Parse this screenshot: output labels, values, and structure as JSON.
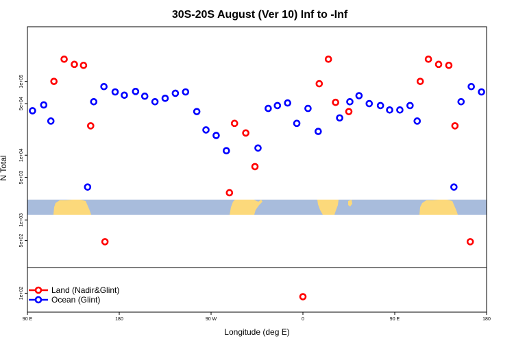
{
  "chart_data": {
    "type": "scatter",
    "title": "30S-20S August (Ver 10)   Inf to -Inf",
    "xlabel": "Longitude (deg E)",
    "ylabel": "N Total",
    "x_ticks": [
      {
        "value": 0,
        "label": "90 E"
      },
      {
        "value": 90,
        "label": "180"
      },
      {
        "value": 180,
        "label": "90 W"
      },
      {
        "value": 270,
        "label": "0"
      },
      {
        "value": 360,
        "label": "90 E"
      },
      {
        "value": 450,
        "label": "180"
      }
    ],
    "xlim": [
      0,
      450
    ],
    "panels": [
      {
        "name": "top",
        "scale": "log",
        "ylim": [
          2500,
          550000
        ],
        "ticks": [
          {
            "value": 5000,
            "label": "5e+03"
          },
          {
            "value": 10000,
            "label": "1e+04"
          },
          {
            "value": 50000,
            "label": "5e+04"
          },
          {
            "value": 100000,
            "label": "1e+05"
          }
        ]
      },
      {
        "name": "middle",
        "scale": "log",
        "ylim": [
          200,
          1200
        ],
        "ticks": [
          {
            "value": 500,
            "label": "5e+02"
          },
          {
            "value": 1000,
            "label": "1e+03"
          }
        ]
      },
      {
        "name": "bottom",
        "scale": "log",
        "ylim": [
          60,
          200
        ],
        "ticks": [
          {
            "value": 100,
            "label": "1e+02"
          }
        ]
      }
    ],
    "legend": {
      "position": "bottom-left"
    },
    "series": [
      {
        "name": "Land (Nadir&Glint)",
        "color": "#ff0000",
        "points": [
          {
            "x": 26,
            "y": 100000
          },
          {
            "x": 36,
            "y": 200000
          },
          {
            "x": 46,
            "y": 170000
          },
          {
            "x": 55,
            "y": 165000
          },
          {
            "x": 62,
            "y": 25000
          },
          {
            "x": 76,
            "y": 480
          },
          {
            "x": 198,
            "y": 3100
          },
          {
            "x": 203,
            "y": 27000
          },
          {
            "x": 214,
            "y": 20000
          },
          {
            "x": 223,
            "y": 7000
          },
          {
            "x": 270,
            "y": 91
          },
          {
            "x": 286,
            "y": 93000
          },
          {
            "x": 295,
            "y": 200000
          },
          {
            "x": 302,
            "y": 52000
          },
          {
            "x": 315,
            "y": 39000
          },
          {
            "x": 385,
            "y": 100000
          },
          {
            "x": 393,
            "y": 200000
          },
          {
            "x": 403,
            "y": 170000
          },
          {
            "x": 413,
            "y": 165000
          },
          {
            "x": 419,
            "y": 25000
          },
          {
            "x": 434,
            "y": 480
          }
        ]
      },
      {
        "name": "Ocean (Glint)",
        "color": "#0000ff",
        "points": [
          {
            "x": 5,
            "y": 40000
          },
          {
            "x": 16,
            "y": 48000
          },
          {
            "x": 23,
            "y": 29000
          },
          {
            "x": 59,
            "y": 3700
          },
          {
            "x": 65,
            "y": 53000
          },
          {
            "x": 75,
            "y": 85000
          },
          {
            "x": 86,
            "y": 72000
          },
          {
            "x": 95,
            "y": 65000
          },
          {
            "x": 106,
            "y": 73000
          },
          {
            "x": 115,
            "y": 63000
          },
          {
            "x": 125,
            "y": 53000
          },
          {
            "x": 135,
            "y": 59000
          },
          {
            "x": 145,
            "y": 69000
          },
          {
            "x": 155,
            "y": 72000
          },
          {
            "x": 166,
            "y": 39000
          },
          {
            "x": 175,
            "y": 22000
          },
          {
            "x": 185,
            "y": 18500
          },
          {
            "x": 195,
            "y": 11500
          },
          {
            "x": 226,
            "y": 12500
          },
          {
            "x": 236,
            "y": 43000
          },
          {
            "x": 245,
            "y": 47000
          },
          {
            "x": 255,
            "y": 51000
          },
          {
            "x": 264,
            "y": 27000
          },
          {
            "x": 275,
            "y": 43000
          },
          {
            "x": 285,
            "y": 21000
          },
          {
            "x": 306,
            "y": 32000
          },
          {
            "x": 316,
            "y": 53000
          },
          {
            "x": 325,
            "y": 64000
          },
          {
            "x": 335,
            "y": 50000
          },
          {
            "x": 346,
            "y": 47000
          },
          {
            "x": 355,
            "y": 41000
          },
          {
            "x": 365,
            "y": 41000
          },
          {
            "x": 375,
            "y": 47000
          },
          {
            "x": 382,
            "y": 29000
          },
          {
            "x": 418,
            "y": 3700
          },
          {
            "x": 425,
            "y": 53000
          },
          {
            "x": 435,
            "y": 85000
          },
          {
            "x": 445,
            "y": 72000
          }
        ]
      }
    ]
  }
}
